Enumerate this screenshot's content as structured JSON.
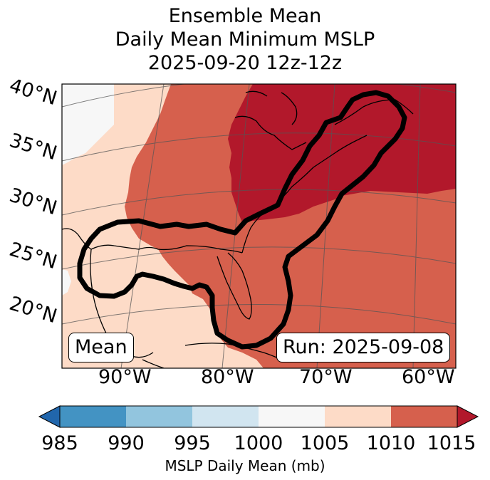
{
  "title": {
    "line1": "Ensemble Mean",
    "line2": "Daily Mean Minimum MSLP",
    "line3": "2025-09-20 12z-12z"
  },
  "map": {
    "lat_labels": [
      "40°N",
      "35°N",
      "30°N",
      "25°N",
      "20°N"
    ],
    "lon_labels": [
      "90°W",
      "80°W",
      "70°W",
      "60°W"
    ],
    "mean_label": "Mean",
    "run_label": "Run: 2025-09-08",
    "colors": {
      "c1000_1005": "#f7f7f7",
      "c1005_1010": "#fddbc7",
      "c1010_1015": "#d6604d",
      "c1015_plus": "#b2182b",
      "outline": "#000000"
    }
  },
  "colorbar": {
    "ticks": [
      "985",
      "990",
      "995",
      "1000",
      "1005",
      "1010",
      "1015"
    ],
    "label": "MSLP Daily Mean (mb)",
    "colors": [
      "#2166ac",
      "#4393c3",
      "#92c5de",
      "#d1e5f0",
      "#f7f7f7",
      "#fddbc7",
      "#d6604d",
      "#b2182b"
    ]
  }
}
